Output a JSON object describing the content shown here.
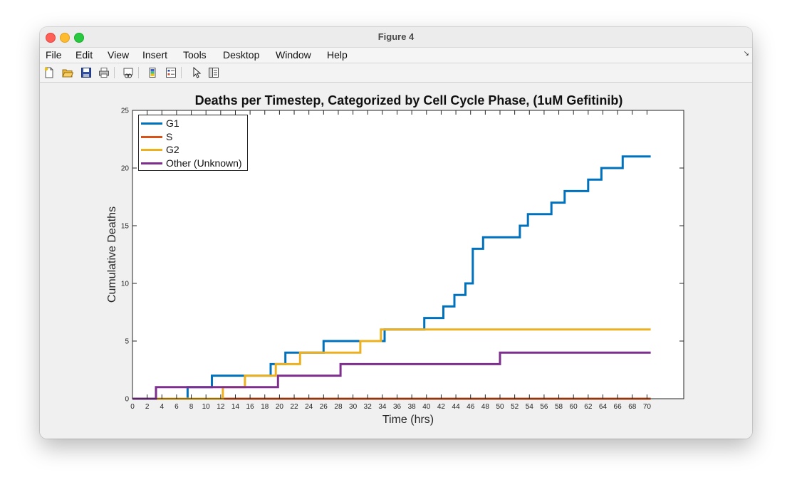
{
  "window": {
    "title": "Figure 4"
  },
  "menu": [
    "File",
    "Edit",
    "View",
    "Insert",
    "Tools",
    "Desktop",
    "Window",
    "Help"
  ],
  "toolbar": {
    "icons": [
      "new-figure-icon",
      "open-file-icon",
      "save-icon",
      "print-icon",
      "link-plot-icon",
      "insert-colorbar-icon",
      "insert-legend-icon",
      "edit-plot-icon",
      "property-editor-icon"
    ]
  },
  "chart_data": {
    "type": "line",
    "title": "Deaths per Timestep, Categorized by Cell Cycle Phase, (1uM Gefitinib)",
    "xlabel": "Time (hrs)",
    "ylabel": "Cumulative Deaths",
    "xlim": [
      0,
      75
    ],
    "ylim": [
      0,
      25
    ],
    "xticks": [
      0,
      2,
      4,
      6,
      8,
      10,
      12,
      14,
      16,
      18,
      20,
      22,
      24,
      26,
      28,
      30,
      32,
      34,
      36,
      38,
      40,
      42,
      44,
      46,
      48,
      50,
      52,
      54,
      56,
      58,
      60,
      62,
      64,
      66,
      68,
      70
    ],
    "yticks": [
      0,
      5,
      10,
      15,
      20,
      25
    ],
    "grid": false,
    "legend_position": "top-left",
    "series": [
      {
        "name": "G1",
        "color": "#0072BD",
        "points": [
          [
            0,
            0
          ],
          [
            7.5,
            0
          ],
          [
            7.5,
            1
          ],
          [
            10.8,
            1
          ],
          [
            10.8,
            2
          ],
          [
            18.8,
            2
          ],
          [
            18.8,
            3
          ],
          [
            20.8,
            3
          ],
          [
            20.8,
            4
          ],
          [
            26,
            4
          ],
          [
            26,
            5
          ],
          [
            34.3,
            5
          ],
          [
            34.3,
            6
          ],
          [
            39.7,
            6
          ],
          [
            39.7,
            7
          ],
          [
            42.3,
            7
          ],
          [
            42.3,
            8
          ],
          [
            43.8,
            8
          ],
          [
            43.8,
            9
          ],
          [
            45.3,
            9
          ],
          [
            45.3,
            10
          ],
          [
            46.3,
            10
          ],
          [
            46.3,
            13
          ],
          [
            47.7,
            13
          ],
          [
            47.7,
            14
          ],
          [
            52.7,
            14
          ],
          [
            52.7,
            15
          ],
          [
            53.8,
            15
          ],
          [
            53.8,
            16
          ],
          [
            57,
            16
          ],
          [
            57,
            17
          ],
          [
            58.8,
            17
          ],
          [
            58.8,
            18
          ],
          [
            62,
            18
          ],
          [
            62,
            19
          ],
          [
            63.8,
            19
          ],
          [
            63.8,
            20
          ],
          [
            66.7,
            20
          ],
          [
            66.7,
            21
          ],
          [
            70.5,
            21
          ]
        ]
      },
      {
        "name": "S",
        "color": "#D95319",
        "points": [
          [
            0,
            0
          ],
          [
            70.5,
            0
          ]
        ]
      },
      {
        "name": "G2",
        "color": "#EDB120",
        "points": [
          [
            0,
            0
          ],
          [
            12.3,
            0
          ],
          [
            12.3,
            1
          ],
          [
            15.3,
            1
          ],
          [
            15.3,
            2
          ],
          [
            19.5,
            2
          ],
          [
            19.5,
            3
          ],
          [
            22.8,
            3
          ],
          [
            22.8,
            4
          ],
          [
            31,
            4
          ],
          [
            31,
            5
          ],
          [
            33.8,
            5
          ],
          [
            33.8,
            6
          ],
          [
            70.5,
            6
          ]
        ]
      },
      {
        "name": "Other (Unknown)",
        "color": "#7E2F8E",
        "points": [
          [
            0,
            0
          ],
          [
            3.2,
            0
          ],
          [
            3.2,
            1
          ],
          [
            19.8,
            1
          ],
          [
            19.8,
            2
          ],
          [
            28.3,
            2
          ],
          [
            28.3,
            3
          ],
          [
            50,
            3
          ],
          [
            50,
            4
          ],
          [
            70.5,
            4
          ]
        ]
      }
    ]
  }
}
